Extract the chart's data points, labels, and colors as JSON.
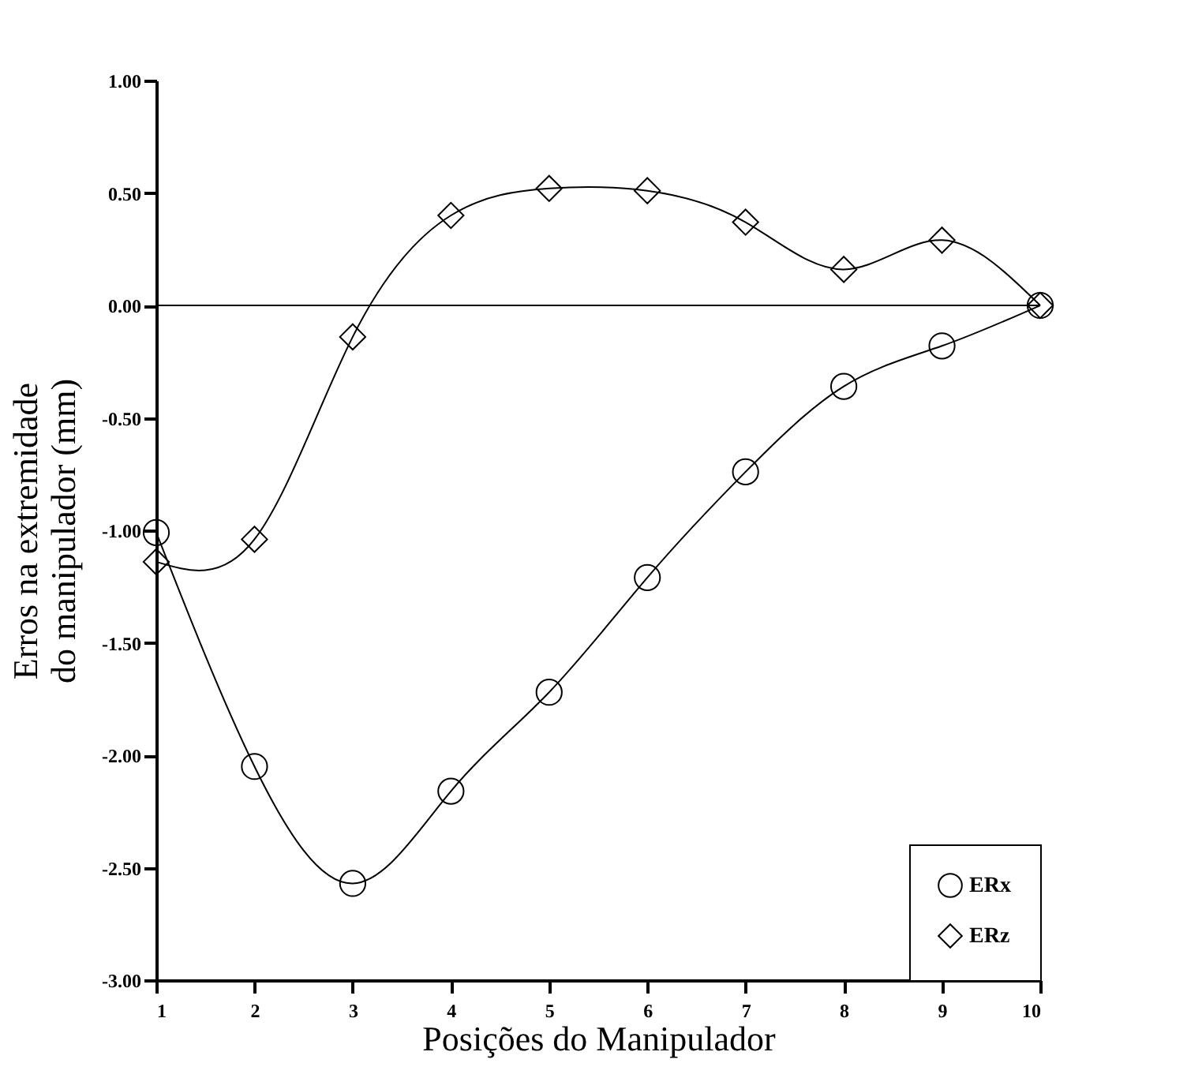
{
  "chart_data": {
    "type": "line",
    "xlabel": "Posições do Manipulador",
    "ylabel": "Erros na extremidade\ndo manipulador  (mm)",
    "x": [
      1,
      2,
      3,
      4,
      5,
      6,
      7,
      8,
      9,
      10
    ],
    "xlim": [
      1,
      10
    ],
    "xticks": [
      1,
      2,
      3,
      4,
      5,
      6,
      7,
      8,
      9,
      10
    ],
    "ylim": [
      -3.0,
      1.0
    ],
    "yticks": [
      {
        "value": -3.0,
        "label": "-3.00"
      },
      {
        "value": -2.5,
        "label": "-2.50"
      },
      {
        "value": -2.0,
        "label": "-2.00"
      },
      {
        "value": -1.5,
        "label": "-1.50"
      },
      {
        "value": -1.0,
        "label": "-1.00"
      },
      {
        "value": -0.5,
        "label": "-0.50"
      },
      {
        "value": 0.0,
        "label": "0.00"
      },
      {
        "value": 0.5,
        "label": "0.50"
      },
      {
        "value": 1.0,
        "label": "1.00"
      }
    ],
    "series": [
      {
        "name": "ERx",
        "color": "#000000",
        "marker": "circle",
        "values": [
          -1.01,
          -2.05,
          -2.57,
          -2.16,
          -1.72,
          -1.21,
          -0.74,
          -0.36,
          -0.18,
          0.0
        ]
      },
      {
        "name": "ERz",
        "color": "#000000",
        "marker": "diamond",
        "values": [
          -1.14,
          -1.04,
          -0.14,
          0.4,
          0.52,
          0.51,
          0.37,
          0.16,
          0.29,
          0.0
        ]
      }
    ],
    "ref_lines": [
      {
        "axis": "y",
        "value": 0.0,
        "color": "#000000"
      }
    ],
    "legend": "bottom right",
    "grid": false,
    "line_style": "solid"
  }
}
